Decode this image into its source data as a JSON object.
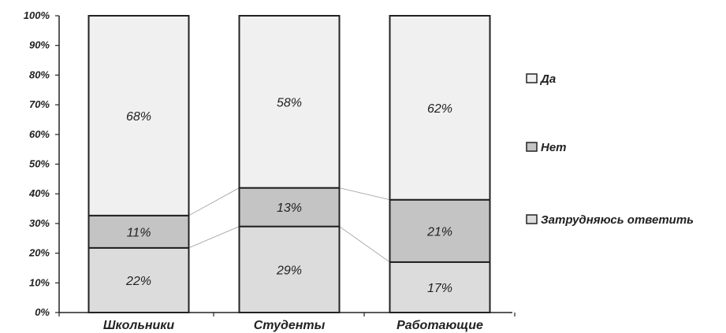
{
  "chart_data": {
    "type": "bar",
    "stacked": true,
    "normalized": true,
    "categories": [
      "Школьники",
      "Студенты",
      "Работающие"
    ],
    "series": [
      {
        "name": "Затрудняюсь ответить",
        "values": [
          22,
          29,
          17
        ],
        "labels": [
          "22%",
          "29%",
          "17%"
        ],
        "color": "#dcdcdc"
      },
      {
        "name": "Нет",
        "values": [
          11,
          13,
          21
        ],
        "labels": [
          "11%",
          "13%",
          "21%"
        ],
        "color": "#c4c4c4"
      },
      {
        "name": "Да",
        "values": [
          68,
          58,
          62
        ],
        "labels": [
          "68%",
          "58%",
          "62%"
        ],
        "color": "#f0f0f0"
      }
    ],
    "ylim": [
      0,
      100
    ],
    "yticks": [
      "0%",
      "10%",
      "20%",
      "30%",
      "40%",
      "50%",
      "60%",
      "70%",
      "80%",
      "90%",
      "100%"
    ],
    "title": "",
    "xlabel": "",
    "ylabel": "",
    "grid": false,
    "legend": {
      "placement": "right",
      "order": [
        "Да",
        "Нет",
        "Затрудняюсь ответить"
      ]
    },
    "series_lines": true
  }
}
